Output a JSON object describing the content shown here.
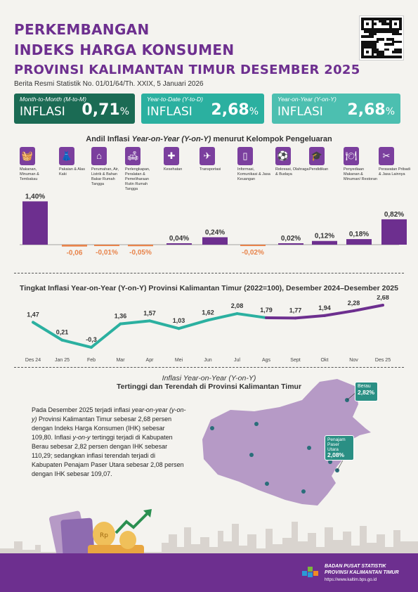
{
  "header": {
    "title_line1": "PERKEMBANGAN",
    "title_line2": "INDEKS HARGA KONSUMEN",
    "title_line3": "PROVINSI KALIMANTAN TIMUR DESEMBER 2025",
    "brs": "Berita Resmi Statistik No. 01/01/64/Th. XXIX, 5 Januari 2026"
  },
  "boxes": [
    {
      "label": "Month-to-Month (M-to-M)",
      "inflasi": "INFLASI",
      "value": "0,71",
      "unit": "%",
      "color": "#1b6b54"
    },
    {
      "label": "Year-to-Date (Y-to-D)",
      "inflasi": "INFLASI",
      "value": "2,68",
      "unit": "%",
      "color": "#2bb0a0"
    },
    {
      "label": "Year-on-Year (Y-on-Y)",
      "inflasi": "INFLASI",
      "value": "2,68",
      "unit": "%",
      "color": "#4cbfb0"
    }
  ],
  "andil": {
    "title_prefix": "Andil Inflasi ",
    "title_italic": "Year-on-Year (Y-on-Y)",
    "title_suffix": " menurut Kelompok Pengeluaran"
  },
  "groups": [
    {
      "label": "Makanan, Minuman & Tembakau",
      "icon": "food-icon",
      "glyph": "🧺"
    },
    {
      "label": "Pakaian & Alas Kaki",
      "icon": "clothing-icon",
      "glyph": "👗"
    },
    {
      "label": "Perumahan, Air, Listrik & Bahan Bakar Rumah Tangga",
      "icon": "house-icon",
      "glyph": "⌂"
    },
    {
      "label": "Perlengkapan, Peralatan & Pemeliharaan Rutin Rumah Tangga",
      "icon": "household-equipment-icon",
      "glyph": "🛋"
    },
    {
      "label": "Kesehatan",
      "icon": "health-icon",
      "glyph": "✚"
    },
    {
      "label": "Transportasi",
      "icon": "transport-icon",
      "glyph": "✈"
    },
    {
      "label": "Informasi, Komunikasi & Jasa Keuangan",
      "icon": "phone-icon",
      "glyph": "▯"
    },
    {
      "label": "Rekreasi, Olahraga & Budaya",
      "icon": "sport-icon",
      "glyph": "⚽"
    },
    {
      "label": "Pendidikan",
      "icon": "education-icon",
      "glyph": "🎓"
    },
    {
      "label": "Penyediaan Makanan & Minuman/ Restoran",
      "icon": "restaurant-icon",
      "glyph": "🍽"
    },
    {
      "label": "Perawatan Pribadi & Jasa Lainnya",
      "icon": "personal-care-icon",
      "glyph": "✂"
    }
  ],
  "chart_data": [
    {
      "type": "bar",
      "categories": [
        "Makanan, Minuman & Tembakau",
        "Pakaian & Alas Kaki",
        "Perumahan, Air, Listrik & Bahan Bakar Rumah Tangga",
        "Perlengkapan, Peralatan & Pemeliharaan Rutin Rumah Tangga",
        "Kesehatan",
        "Transportasi",
        "Informasi, Komunikasi & Jasa Keuangan",
        "Rekreasi, Olahraga & Budaya",
        "Pendidikan",
        "Penyediaan Makanan & Minuman/ Restoran",
        "Perawatan Pribadi & Jasa Lainnya"
      ],
      "values": [
        1.4,
        -0.06,
        -0.01,
        -0.05,
        0.04,
        0.24,
        -0.02,
        0.02,
        0.12,
        0.18,
        0.82
      ],
      "value_labels": [
        "1,40%",
        "-0,06",
        "-0,01%",
        "-0,05%",
        "0,04%",
        "0,24%",
        "-0,02%",
        "0,02%",
        "0,12%",
        "0,18%",
        "0,82%"
      ],
      "colors": {
        "positive": "#6d2f8f",
        "negative": "#e8834a"
      },
      "title": "Andil Inflasi Year-on-Year (Y-on-Y) menurut Kelompok Pengeluaran"
    },
    {
      "type": "line",
      "title": "Tingkat Inflasi Year-on-Year (Y-on-Y) Provinsi Kalimantan Timur (2022=100), Desember 2024–Desember 2025",
      "x": [
        "Des 24",
        "Jan 25",
        "Feb",
        "Mar",
        "Apr",
        "Mei",
        "Jun",
        "Jul",
        "Ags",
        "Sept",
        "Okt",
        "Nov",
        "Des 25"
      ],
      "y": [
        1.47,
        0.21,
        -0.3,
        1.36,
        1.57,
        1.03,
        1.62,
        2.08,
        1.79,
        1.77,
        1.94,
        2.28,
        2.68
      ],
      "y_labels": [
        "1,47",
        "0,21",
        "-0,3",
        "1,36",
        "1,57",
        "1,03",
        "1,62",
        "2,08",
        "1,79",
        "1,77",
        "1,94",
        "2,28",
        "2,68"
      ],
      "colors": {
        "teal": "#2bb0a0",
        "purple": "#6d2f8f"
      }
    }
  ],
  "map": {
    "title_italic": "Inflasi Year-on-Year (Y-on-Y)",
    "title_line2": "Tertinggi dan Terendah di Provinsi Kalimantan Timur",
    "high_name": "Berau",
    "high_value": "2,82%",
    "low_name": "Penajam Paser Utara",
    "low_value": "2,08%",
    "fill": "#b69ac6"
  },
  "paragraph": {
    "p1": "Pada Desember 2025 terjadi inflasi ",
    "p1_italic": "year-on-year (y-on-y)",
    "p2": " Provinsi Kalimantan Timur sebesar 2,68 persen dengan Indeks Harga Konsumen (IHK) sebesar 109,80. Inflasi ",
    "p2_italic": "y-on-y",
    "p3": " tertinggi terjadi di Kabupaten Berau sebesar 2,82 persen dengan IHK sebesar 110,29; sedangkan inflasi terendah terjadi di Kabupaten Penajam Paser Utara sebesar 2,08 persen dengan IHK sebesar 109,07."
  },
  "footer": {
    "org1": "BADAN PUSAT STATISTIK",
    "org2": "PROVINSI KALIMANTAN TIMUR",
    "url": "https://www.kaltim.bps.go.id"
  }
}
